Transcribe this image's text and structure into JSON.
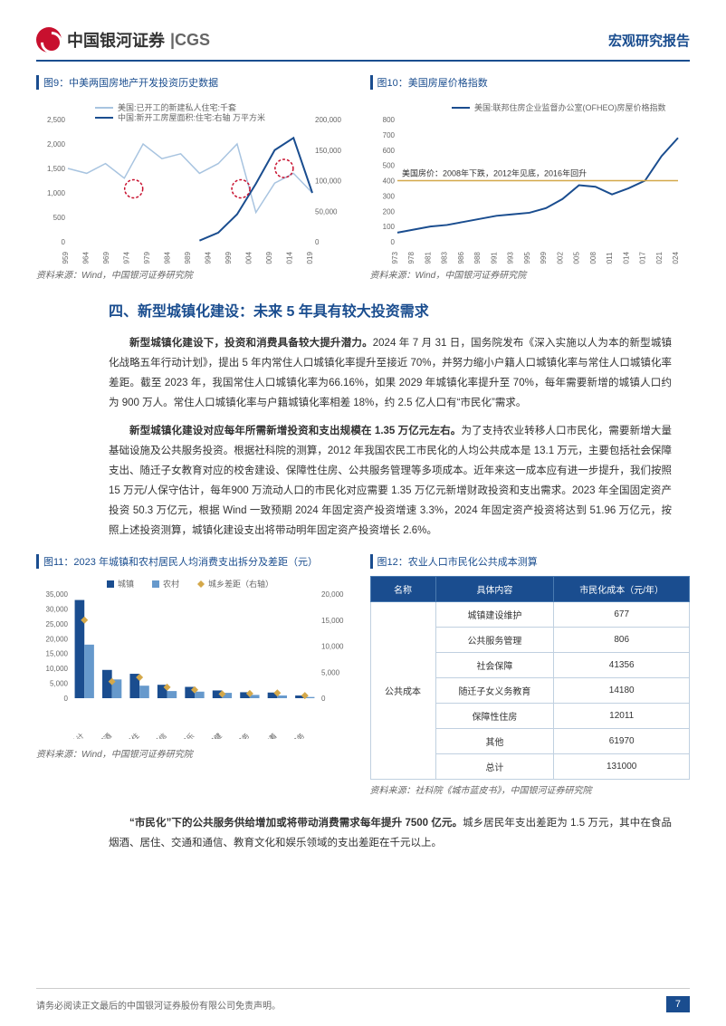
{
  "header": {
    "brand_cn": "中国银河证券",
    "brand_en": "CGS",
    "report_type": "宏观研究报告"
  },
  "chart9": {
    "title": "图9：中美两国房地产开发投资历史数据",
    "legend1": "美国:已开工的新建私人住宅:千套",
    "legend2": "中国:新开工房屋面积:住宅:右轴 万平方米",
    "source": "资料来源：Wind，中国银河证券研究院",
    "type": "line",
    "x_ticks": [
      "1959",
      "1964",
      "1969",
      "1974",
      "1979",
      "1984",
      "1989",
      "1994",
      "1999",
      "2004",
      "2009",
      "2014",
      "2019"
    ],
    "y_left_ticks": [
      0,
      500,
      1000,
      1500,
      2000,
      2500
    ],
    "y_right_ticks": [
      0,
      50000,
      100000,
      150000,
      200000
    ],
    "colors": {
      "us": "#a8c4e0",
      "cn": "#1a4d8f",
      "circle": "#c8102e"
    },
    "us_data": [
      1500,
      1400,
      1600,
      1300,
      2000,
      1700,
      1800,
      1400,
      1600,
      2000,
      600,
      1200,
      1400,
      1000
    ],
    "cn_data": [
      null,
      null,
      null,
      null,
      null,
      null,
      null,
      2000,
      15000,
      45000,
      95000,
      150000,
      170000,
      80000
    ]
  },
  "chart10": {
    "title": "图10：美国房屋价格指数",
    "legend": "美国:联邦住房企业监督办公室(OFHEO)房屋价格指数",
    "source": "资料来源：Wind，中国银河证券研究院",
    "annotation": "美国房价：2008年下跌，2012年见底，2016年回升",
    "type": "line",
    "x_ticks": [
      "1973",
      "1978",
      "1981",
      "1983",
      "1986",
      "1988",
      "1991",
      "1993",
      "1995",
      "1999",
      "2002",
      "2005",
      "2008",
      "2011",
      "2014",
      "2017",
      "2021",
      "2024"
    ],
    "y_ticks": [
      0,
      100,
      200,
      300,
      400,
      500,
      600,
      700,
      800
    ],
    "color": "#1a4d8f",
    "annotation_line_color": "#d4a84a",
    "data": [
      60,
      80,
      100,
      110,
      130,
      150,
      170,
      180,
      190,
      220,
      280,
      370,
      360,
      310,
      350,
      400,
      560,
      680
    ]
  },
  "section4": {
    "title": "四、新型城镇化建设：未来 5 年具有较大投资需求",
    "para1_bold": "新型城镇化建设下，投资和消费具备较大提升潜力。",
    "para1": "2024 年 7 月 31 日，国务院发布《深入实施以人为本的新型城镇化战略五年行动计划》，提出 5 年内常住人口城镇化率提升至接近 70%，并努力缩小户籍人口城镇化率与常住人口城镇化率差距。截至 2023 年，我国常住人口城镇化率为66.16%，如果 2029 年城镇化率提升至 70%，每年需要新增的城镇人口约为 900 万人。常住人口城镇化率与户籍城镇化率相差 18%，约 2.5 亿人口有“市民化”需求。",
    "para2_bold": "新型城镇化建设对应每年所需新增投资和支出规模在 1.35 万亿元左右。",
    "para2": "为了支持农业转移人口市民化，需要新增大量基础设施及公共服务投资。根据社科院的测算，2012 年我国农民工市民化的人均公共成本是 13.1 万元，主要包括社会保障支出、随迁子女教育对应的校舍建设、保障性住房、公共服务管理等多项成本。近年来这一成本应有进一步提升，我们按照 15 万元/人保守估计，每年900 万流动人口的市民化对应需要 1.35 万亿元新增财政投资和支出需求。2023 年全国固定资产投资 50.3 万亿元，根据 Wind 一致预期 2024 年固定资产投资增速 3.3%，2024 年固定资产投资将达到 51.96 万亿元，按照上述投资测算，城镇化建设支出将带动明年固定资产投资增长 2.6%。",
    "para3_bold": "“市民化”下的公共服务供给增加或将带动消费需求每年提升 7500 亿元。",
    "para3": "城乡居民年支出差距为 1.5 万元，其中在食品烟酒、居住、交通和通信、教育文化和娱乐领域的支出差距在千元以上。"
  },
  "chart11": {
    "title": "图11：2023 年城镇和农村居民人均消费支出拆分及差距（元）",
    "source": "资料来源：Wind，中国银河证券研究院",
    "type": "bar",
    "legend": {
      "urban": "城镇",
      "rural": "农村",
      "gap": "城乡差距（右轴）"
    },
    "colors": {
      "urban": "#1a4d8f",
      "rural": "#6699cc",
      "gap": "#d4a84a"
    },
    "categories": [
      "总计",
      "食品烟酒",
      "居住",
      "交通和通信",
      "教育、文化和娱乐",
      "医疗保健",
      "生活用品及服务",
      "衣着",
      "其他用品及服务"
    ],
    "urban": [
      33000,
      9500,
      8200,
      4500,
      3800,
      2600,
      2000,
      1900,
      900
    ],
    "rural": [
      18000,
      6300,
      4200,
      2400,
      2200,
      1800,
      1100,
      900,
      400
    ],
    "gap": [
      15000,
      3200,
      4000,
      2100,
      1600,
      800,
      900,
      1000,
      500
    ],
    "y_left_ticks": [
      0,
      5000,
      10000,
      15000,
      20000,
      25000,
      30000,
      35000
    ],
    "y_right_ticks": [
      0,
      5000,
      10000,
      15000,
      20000
    ]
  },
  "chart12": {
    "title": "图12：农业人口市民化公共成本测算",
    "source": "资料来源：社科院《城市蓝皮书》，中国银河证券研究院",
    "headers": [
      "名称",
      "具体内容",
      "市民化成本（元/年）"
    ],
    "rowspan_label": "公共成本",
    "rows": [
      [
        "城镇建设维护",
        "677"
      ],
      [
        "公共服务管理",
        "806"
      ],
      [
        "社会保障",
        "41356"
      ],
      [
        "随迁子女义务教育",
        "14180"
      ],
      [
        "保障性住房",
        "12011"
      ],
      [
        "其他",
        "61970"
      ],
      [
        "总计",
        "131000"
      ]
    ]
  },
  "footer": {
    "disclaimer": "请务必阅读正文最后的中国银河证券股份有限公司免责声明。",
    "page": "7"
  }
}
